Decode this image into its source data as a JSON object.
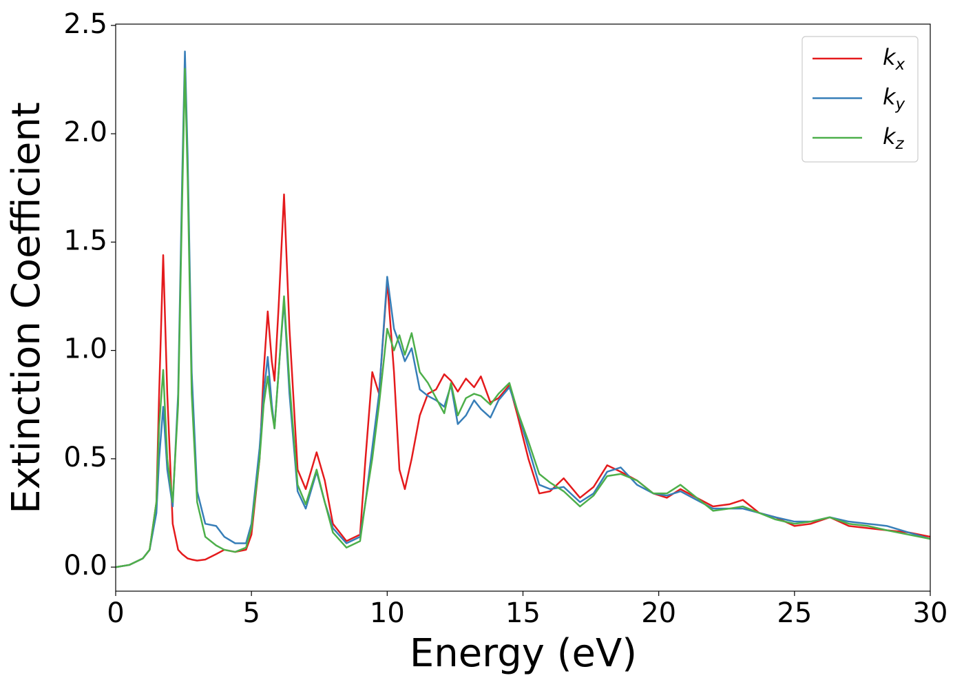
{
  "chart_data": {
    "type": "line",
    "xlabel": "Energy (eV)",
    "ylabel": "Extinction Coefficient",
    "x": [
      0,
      0.5,
      1,
      1.25,
      1.5,
      1.6,
      1.75,
      1.9,
      2.1,
      2.3,
      2.45,
      2.55,
      2.65,
      2.8,
      3.0,
      3.3,
      3.7,
      4.0,
      4.4,
      4.8,
      5.0,
      5.3,
      5.45,
      5.6,
      5.75,
      5.85,
      6.0,
      6.2,
      6.4,
      6.7,
      7.0,
      7.4,
      7.7,
      8.0,
      8.5,
      9.0,
      9.2,
      9.45,
      9.7,
      10.0,
      10.25,
      10.45,
      10.65,
      10.9,
      11.2,
      11.5,
      11.8,
      12.1,
      12.35,
      12.6,
      12.9,
      13.2,
      13.45,
      13.8,
      14.1,
      14.5,
      14.8,
      15.2,
      15.6,
      16.0,
      16.5,
      17.1,
      17.6,
      18.1,
      18.6,
      19.2,
      19.8,
      20.3,
      20.8,
      21.4,
      22.0,
      22.6,
      23.1,
      23.7,
      24.3,
      25.0,
      25.6,
      26.3,
      27.0,
      27.7,
      28.4,
      29.2,
      30
    ],
    "series": [
      {
        "name": "kx",
        "color": "#e41a1c",
        "values": [
          0,
          0.01,
          0.04,
          0.08,
          0.3,
          0.8,
          1.44,
          0.8,
          0.2,
          0.08,
          0.06,
          0.05,
          0.04,
          0.035,
          0.03,
          0.035,
          0.06,
          0.08,
          0.07,
          0.08,
          0.15,
          0.5,
          0.9,
          1.18,
          0.95,
          0.86,
          1.2,
          1.72,
          1.1,
          0.45,
          0.36,
          0.53,
          0.4,
          0.2,
          0.12,
          0.15,
          0.5,
          0.9,
          0.8,
          1.32,
          0.9,
          0.45,
          0.36,
          0.5,
          0.7,
          0.8,
          0.82,
          0.89,
          0.86,
          0.81,
          0.87,
          0.83,
          0.88,
          0.76,
          0.78,
          0.84,
          0.7,
          0.5,
          0.34,
          0.35,
          0.41,
          0.32,
          0.37,
          0.47,
          0.44,
          0.4,
          0.34,
          0.32,
          0.36,
          0.32,
          0.28,
          0.29,
          0.31,
          0.25,
          0.23,
          0.19,
          0.2,
          0.23,
          0.19,
          0.18,
          0.17,
          0.16,
          0.14
        ]
      },
      {
        "name": "ky",
        "color": "#377eb8",
        "values": [
          0,
          0.01,
          0.04,
          0.08,
          0.25,
          0.5,
          0.74,
          0.45,
          0.28,
          0.8,
          1.8,
          2.38,
          1.9,
          0.9,
          0.35,
          0.2,
          0.19,
          0.14,
          0.11,
          0.11,
          0.2,
          0.55,
          0.8,
          0.97,
          0.75,
          0.64,
          0.9,
          1.23,
          0.8,
          0.35,
          0.27,
          0.44,
          0.3,
          0.18,
          0.11,
          0.14,
          0.3,
          0.55,
          0.8,
          1.34,
          1.1,
          1.03,
          0.95,
          1.01,
          0.82,
          0.79,
          0.77,
          0.74,
          0.84,
          0.66,
          0.7,
          0.77,
          0.73,
          0.69,
          0.77,
          0.83,
          0.72,
          0.55,
          0.38,
          0.36,
          0.37,
          0.3,
          0.34,
          0.44,
          0.46,
          0.38,
          0.34,
          0.33,
          0.35,
          0.31,
          0.27,
          0.27,
          0.27,
          0.25,
          0.23,
          0.21,
          0.21,
          0.23,
          0.21,
          0.2,
          0.19,
          0.16,
          0.13
        ]
      },
      {
        "name": "kz",
        "color": "#4daf4a",
        "values": [
          0,
          0.01,
          0.04,
          0.08,
          0.3,
          0.65,
          0.91,
          0.5,
          0.3,
          0.75,
          1.7,
          2.3,
          1.8,
          0.8,
          0.3,
          0.14,
          0.1,
          0.08,
          0.07,
          0.09,
          0.18,
          0.5,
          0.75,
          0.88,
          0.72,
          0.64,
          0.9,
          1.25,
          0.85,
          0.38,
          0.29,
          0.45,
          0.3,
          0.16,
          0.09,
          0.12,
          0.3,
          0.5,
          0.75,
          1.1,
          1.0,
          1.07,
          0.98,
          1.08,
          0.9,
          0.85,
          0.78,
          0.71,
          0.85,
          0.7,
          0.78,
          0.8,
          0.79,
          0.75,
          0.8,
          0.85,
          0.72,
          0.58,
          0.43,
          0.39,
          0.35,
          0.28,
          0.33,
          0.42,
          0.43,
          0.4,
          0.34,
          0.34,
          0.38,
          0.32,
          0.26,
          0.27,
          0.28,
          0.25,
          0.22,
          0.2,
          0.21,
          0.23,
          0.2,
          0.19,
          0.17,
          0.15,
          0.13
        ]
      }
    ],
    "xlim": [
      0,
      30
    ],
    "ylim": [
      -0.111,
      2.506
    ],
    "xticks": [
      0,
      5,
      10,
      15,
      20,
      25,
      30
    ],
    "yticks": [
      {
        "value": 0,
        "label": "0.0"
      },
      0.5,
      {
        "value": 1,
        "label": "1.0"
      },
      1.5,
      {
        "value": 2,
        "label": "2.0"
      },
      2.5
    ],
    "grid": false,
    "legend": "upper right"
  }
}
